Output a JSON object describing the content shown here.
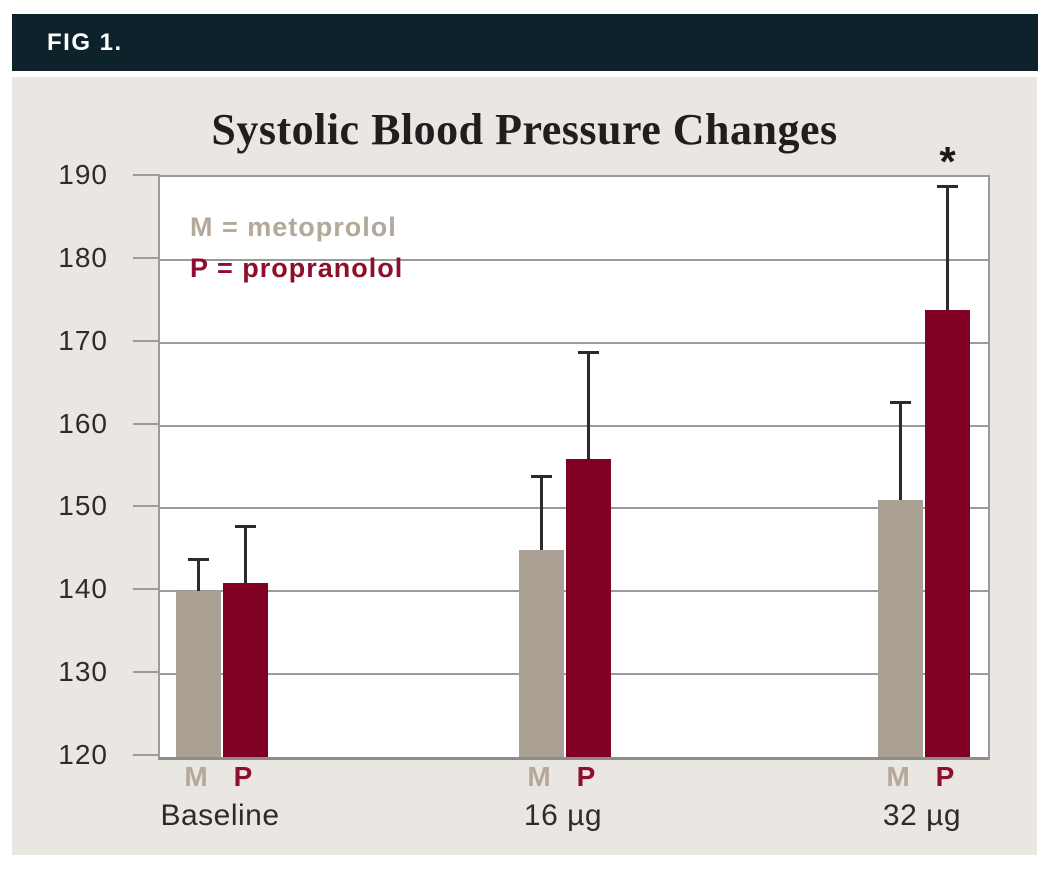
{
  "figure": {
    "label": "FIG 1."
  },
  "chart_data": {
    "type": "bar",
    "title": "Systolic Blood Pressure Changes",
    "categories": [
      "Baseline",
      "16 µg",
      "32 µg"
    ],
    "series": [
      {
        "short_label": "M",
        "name": "metoprolol",
        "legend_label": "M = metoprolol",
        "bar_color": "#aba094",
        "text_color": "#b3a89a",
        "values": [
          140,
          145,
          151
        ],
        "error_top": [
          144,
          154,
          163
        ]
      },
      {
        "short_label": "P",
        "name": "propranolol",
        "legend_label": "P = propranolol",
        "bar_color": "#800124",
        "text_color": "#8e0f2d",
        "values": [
          141,
          156,
          174
        ],
        "error_top": [
          148,
          169,
          189
        ]
      }
    ],
    "ylim": [
      120,
      190
    ],
    "yticks": [
      120,
      130,
      140,
      150,
      160,
      170,
      180,
      190
    ],
    "grid": true,
    "legend_position": "top-left-inside",
    "annotations": [
      {
        "text": "*",
        "category_index": 2,
        "series_index": 1
      }
    ]
  },
  "colors": {
    "page_background": "#ffffff",
    "panel_background": "#eae6e1",
    "header_bar": "#0e222c",
    "header_text": "#ffffff",
    "plot_background": "#ffffff",
    "gridline": "#9b9b9b",
    "axis_line": "#8d8d8d",
    "tick_text": "#2e2c2a",
    "title_text": "#221e1f",
    "error_bar": "#2b2b2b"
  }
}
